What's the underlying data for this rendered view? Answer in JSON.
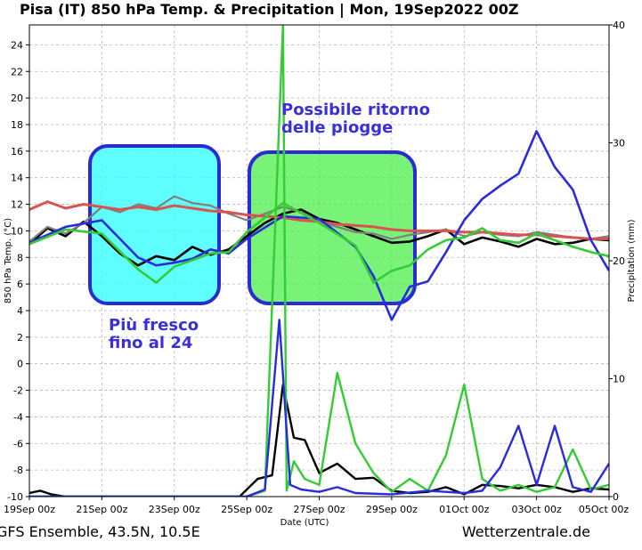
{
  "chart_data": {
    "type": "line",
    "title": "Pisa  (IT)  850 hPa Temp. & Precipitation | Mon, 19Sep2022 00Z",
    "xlabel": "Date (UTC)",
    "ylabel": "850 hPa Temp. (°C)",
    "y2label": "Precipitation (mm)",
    "x_ticks": [
      "19Sep 00z",
      "21Sep 00z",
      "23Sep 00z",
      "25Sep 00z",
      "27Sep 00z",
      "29Sep 00z",
      "01Oct 00z",
      "03Oct 00z",
      "05Oct 00z"
    ],
    "x_tick_days": [
      0,
      2,
      4,
      6,
      8,
      10,
      12,
      14,
      16
    ],
    "xlim_days": [
      0,
      16
    ],
    "y_ticks": [
      -10,
      -8,
      -6,
      -4,
      -2,
      0,
      2,
      4,
      6,
      8,
      10,
      12,
      14,
      16,
      18,
      20,
      22,
      24
    ],
    "ylim": [
      -10,
      25.5
    ],
    "y2_ticks": [
      0,
      10,
      20,
      30,
      40
    ],
    "y2lim": [
      0,
      40
    ],
    "grid": true,
    "series": [
      {
        "role": "mean-temperature",
        "color": "#000000",
        "x": [
          0,
          0.5,
          1,
          1.5,
          2,
          2.5,
          3,
          3.5,
          4,
          4.5,
          5,
          5.5,
          6,
          6.5,
          7,
          7.5,
          8,
          8.5,
          9,
          9.5,
          10,
          10.5,
          11,
          11.5,
          12,
          12.5,
          13,
          13.5,
          14,
          14.5,
          15,
          15.5,
          16
        ],
        "y": [
          9,
          10.2,
          9.6,
          10.7,
          9.6,
          8.3,
          7.4,
          8.1,
          7.8,
          8.8,
          8.2,
          8.6,
          9.6,
          10.6,
          11.3,
          11.6,
          10.9,
          10.6,
          10.1,
          9.6,
          9.1,
          9.2,
          9.6,
          10.1,
          9.0,
          9.5,
          9.2,
          8.8,
          9.4,
          9.0,
          9.1,
          9.4,
          9.3
        ]
      },
      {
        "role": "control-run-temperature",
        "color": "#7f7f7f",
        "x": [
          0,
          0.5,
          1,
          1.5,
          2,
          2.5,
          3,
          3.5,
          4,
          4.5,
          5,
          5.5,
          6,
          6.5,
          7,
          7.5,
          8,
          8.5,
          9,
          9.5,
          10,
          10.5,
          11,
          11.5,
          12,
          12.5,
          13,
          13.5,
          14,
          14.5,
          15,
          15.5,
          16
        ],
        "y": [
          9.2,
          10.3,
          9.8,
          10.6,
          11.8,
          11.4,
          12.0,
          11.7,
          12.6,
          12.1,
          11.9,
          11.3,
          10.8,
          11.3,
          11.8,
          11.4,
          10.7,
          10.3,
          9.9,
          9.8,
          9.4,
          9.7,
          9.9,
          10.1,
          9.6,
          9.9,
          9.7,
          9.6,
          9.9,
          9.7,
          9.5,
          9.4,
          9.6
        ]
      },
      {
        "role": "climatology-temperature",
        "color": "#d9534f",
        "x": [
          0,
          0.5,
          1,
          1.5,
          2,
          2.5,
          3,
          3.5,
          4,
          4.5,
          5,
          5.5,
          6,
          6.5,
          7,
          7.5,
          8,
          8.5,
          9,
          9.5,
          10,
          10.5,
          11,
          11.5,
          12,
          12.5,
          13,
          13.5,
          14,
          14.5,
          15,
          15.5,
          16
        ],
        "y": [
          11.6,
          12.2,
          11.7,
          12.0,
          11.8,
          11.6,
          11.8,
          11.6,
          11.9,
          11.7,
          11.5,
          11.4,
          11.2,
          11.1,
          11.0,
          10.8,
          10.7,
          10.5,
          10.4,
          10.3,
          10.1,
          10.0,
          10.0,
          10.0,
          9.9,
          9.9,
          9.8,
          9.7,
          9.7,
          9.6,
          9.5,
          9.4,
          9.4
        ]
      },
      {
        "role": "ensemble-member-temperature",
        "color": "#2a2adf",
        "x": [
          0,
          1,
          2,
          3,
          3.5,
          4,
          4.5,
          5,
          5.5,
          6,
          7,
          8,
          9,
          9.5,
          10,
          10.5,
          11,
          11.5,
          12,
          12.5,
          13,
          13.5,
          14,
          14.5,
          15,
          15.5,
          16
        ],
        "y": [
          9.1,
          10.3,
          10.8,
          8.0,
          7.4,
          7.6,
          7.9,
          8.6,
          8.3,
          9.4,
          11.1,
          10.9,
          8.8,
          6.6,
          3.3,
          5.8,
          6.2,
          8.4,
          10.8,
          12.4,
          13.4,
          14.3,
          17.5,
          14.8,
          13.1,
          9.3,
          7.0
        ]
      },
      {
        "role": "ensemble-member-temperature",
        "color": "#33cc33",
        "x": [
          0,
          1,
          2,
          3,
          3.5,
          4,
          4.5,
          5,
          5.5,
          6,
          7,
          8,
          9,
          9.5,
          10,
          10.5,
          11,
          11.5,
          12,
          12.5,
          13,
          13.5,
          14,
          14.5,
          15,
          15.5,
          16
        ],
        "y": [
          9.0,
          10.1,
          9.8,
          7.1,
          6.1,
          7.3,
          7.8,
          8.3,
          8.4,
          9.9,
          12.1,
          10.6,
          8.9,
          6.1,
          7.0,
          7.4,
          8.6,
          9.3,
          9.5,
          10.2,
          9.3,
          9.1,
          9.8,
          9.3,
          8.8,
          8.4,
          8.1
        ]
      },
      {
        "role": "mean-precipitation",
        "color": "#000000",
        "axis": "y2",
        "x": [
          0,
          0.3,
          0.6,
          1,
          2,
          3,
          4,
          5,
          5.8,
          6.3,
          6.7,
          7.0,
          7.3,
          7.6,
          8,
          8.5,
          9,
          9.5,
          10,
          10.5,
          11,
          11.5,
          12,
          12.5,
          13,
          13.5,
          14,
          14.5,
          15,
          15.5,
          16
        ],
        "y": [
          0.3,
          0.5,
          0.2,
          0,
          0,
          0,
          0,
          0,
          0,
          1.5,
          1.8,
          9.5,
          5.0,
          4.8,
          2.0,
          2.8,
          1.5,
          1.6,
          0.5,
          0.3,
          0.4,
          0.8,
          0.2,
          1.0,
          0.9,
          0.7,
          1.0,
          0.8,
          0.4,
          0.7,
          0.6
        ]
      },
      {
        "role": "ensemble-member-precipitation",
        "color": "#33cc33",
        "axis": "y2",
        "x": [
          0,
          6,
          6.5,
          7.0,
          7.1,
          7.3,
          7.6,
          8,
          8.5,
          9,
          9.5,
          10,
          10.5,
          11,
          11.5,
          12,
          12.5,
          13,
          13.5,
          14,
          14.5,
          15,
          15.5,
          16
        ],
        "y": [
          0,
          0,
          0.5,
          40,
          0.5,
          3.0,
          1.5,
          1.0,
          10.5,
          4.5,
          2.0,
          0.4,
          1.5,
          0.5,
          3.5,
          9.5,
          1.5,
          0.5,
          1.0,
          0.4,
          0.8,
          4.0,
          0.6,
          1.0
        ]
      },
      {
        "role": "ensemble-member-precipitation",
        "color": "#2a2adf",
        "axis": "y2",
        "x": [
          0,
          6,
          6.5,
          6.9,
          7.2,
          7.5,
          8,
          8.5,
          9,
          10,
          11,
          12,
          12.5,
          13,
          13.5,
          14,
          14.5,
          15,
          15.5,
          16
        ],
        "y": [
          0,
          0,
          0.6,
          15.0,
          1.0,
          0.6,
          0.4,
          0.8,
          0.3,
          0.2,
          0.5,
          0.3,
          0.5,
          2.5,
          6.0,
          1.0,
          6.0,
          0.8,
          0.4,
          2.8
        ]
      }
    ]
  },
  "annotations": {
    "fresco": {
      "line1": "Più fresco",
      "line2": "fino al 24",
      "box_color": "#33ffff"
    },
    "piogge": {
      "line1": "Possibile ritorno",
      "line2": "delle piogge",
      "box_color": "#44ee44"
    }
  },
  "footer": {
    "left": "GFS Ensemble, 43.5N, 10.5E",
    "right": "Wetterzentrale.de"
  }
}
